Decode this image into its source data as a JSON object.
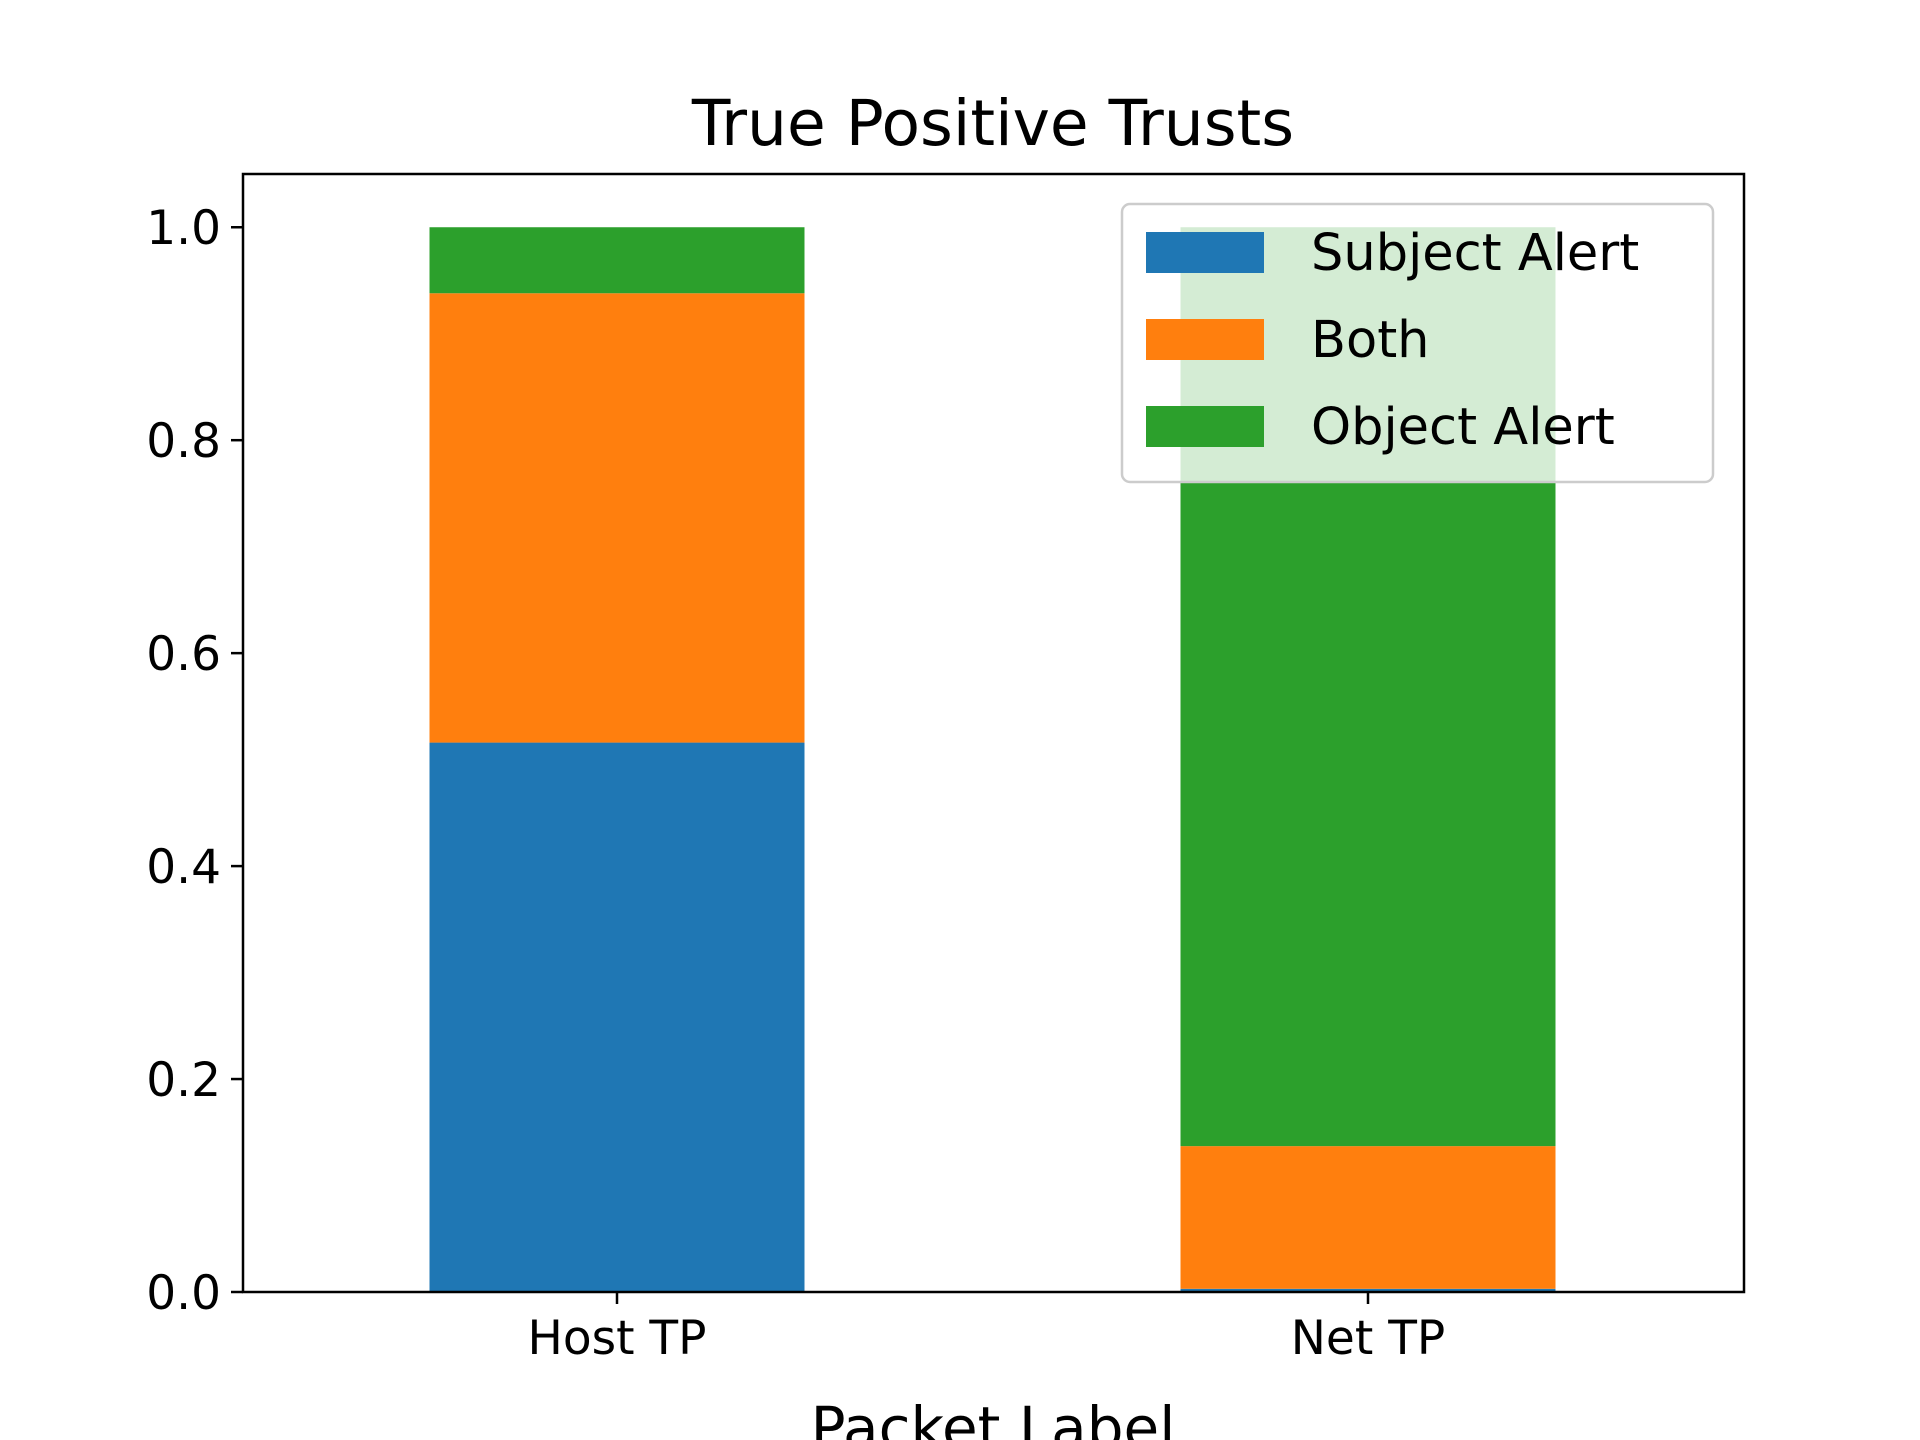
{
  "chart_data": {
    "type": "bar",
    "stacked": true,
    "title": "True Positive Trusts",
    "xlabel": "Packet Label",
    "ylabel": "",
    "categories": [
      "Host TP",
      "Net TP"
    ],
    "series": [
      {
        "name": "Subject Alert",
        "color": "#1f77b4",
        "values": [
          0.516,
          0.003
        ]
      },
      {
        "name": "Both",
        "color": "#ff7f0e",
        "values": [
          0.422,
          0.134
        ]
      },
      {
        "name": "Object Alert",
        "color": "#2ca02c",
        "values": [
          0.062,
          0.863
        ]
      }
    ],
    "ylim": [
      0,
      1.05
    ],
    "yticks": [
      "0.0",
      "0.2",
      "0.4",
      "0.6",
      "0.8",
      "1.0"
    ],
    "grid": false,
    "legend": "top-right"
  }
}
